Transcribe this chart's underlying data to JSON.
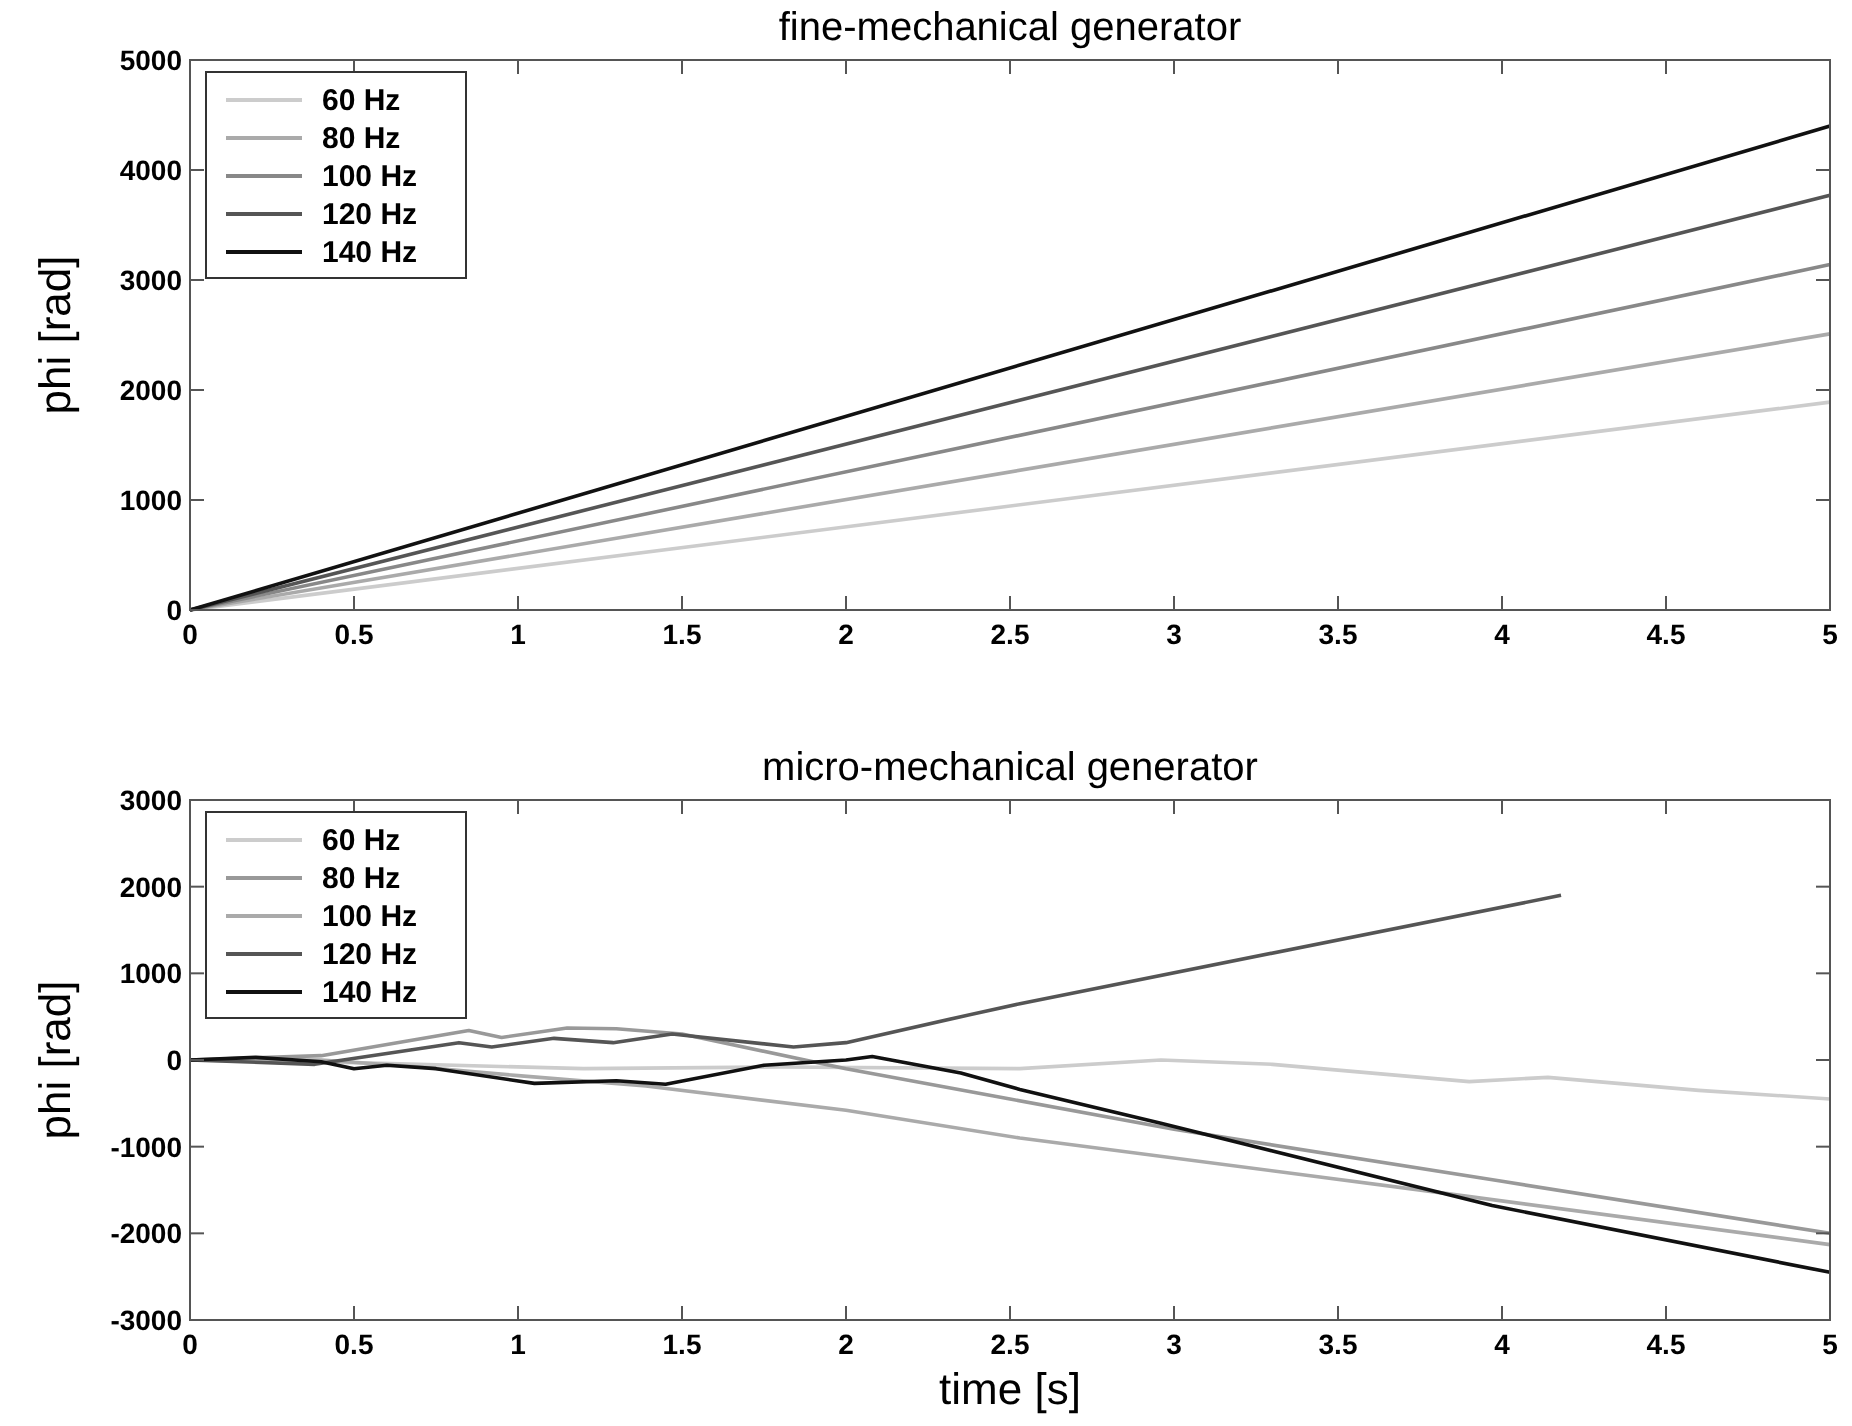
{
  "chart_data": [
    {
      "type": "line",
      "title": "fine-mechanical generator",
      "ylabel": "phi [rad]",
      "xlim": [
        0,
        5
      ],
      "ylim": [
        0,
        5000
      ],
      "xticks": [
        0,
        0.5,
        1,
        1.5,
        2,
        2.5,
        3,
        3.5,
        4,
        4.5,
        5
      ],
      "yticks": [
        0,
        1000,
        2000,
        3000,
        4000,
        5000
      ],
      "legend": "top left",
      "series": [
        {
          "name": "60 Hz",
          "color": "#cccccc",
          "x": [
            0,
            5
          ],
          "values": [
            0,
            1890
          ]
        },
        {
          "name": "80 Hz",
          "color": "#aaaaaa",
          "x": [
            0,
            5
          ],
          "values": [
            0,
            2510
          ]
        },
        {
          "name": "100 Hz",
          "color": "#888888",
          "x": [
            0,
            5
          ],
          "values": [
            0,
            3140
          ]
        },
        {
          "name": "120 Hz",
          "color": "#555555",
          "x": [
            0,
            5
          ],
          "values": [
            0,
            3770
          ]
        },
        {
          "name": "140 Hz",
          "color": "#111111",
          "x": [
            0,
            5
          ],
          "values": [
            0,
            4400
          ]
        }
      ]
    },
    {
      "type": "line",
      "title": "micro-mechanical generator",
      "xlabel": "time [s]",
      "ylabel": "phi [rad]",
      "xlim": [
        0,
        5
      ],
      "ylim": [
        -3000,
        3000
      ],
      "xticks": [
        0,
        0.5,
        1,
        1.5,
        2,
        2.5,
        3,
        3.5,
        4,
        4.5,
        5
      ],
      "yticks": [
        -3000,
        -2000,
        -1000,
        0,
        1000,
        2000,
        3000
      ],
      "legend": "top left",
      "series": [
        {
          "name": "60 Hz",
          "color": "#cccccc",
          "x": [
            0,
            0.5,
            1.2,
            1.8,
            2.53,
            2.96,
            3.3,
            3.9,
            4.14,
            4.6,
            5
          ],
          "values": [
            0,
            -30,
            -100,
            -80,
            -100,
            0,
            -50,
            -250,
            -200,
            -350,
            -450
          ]
        },
        {
          "name": "80 Hz",
          "color": "#999999",
          "x": [
            0,
            0.4,
            0.85,
            0.95,
            1.15,
            1.3,
            1.5,
            2,
            2.5,
            3,
            4,
            5
          ],
          "values": [
            0,
            50,
            340,
            260,
            370,
            360,
            300,
            -100,
            -450,
            -800,
            -1400,
            -2000
          ]
        },
        {
          "name": "100 Hz",
          "color": "#aaaaaa",
          "x": [
            0,
            0.4,
            0.7,
            1,
            1.39,
            2,
            2.53,
            3.81,
            5
          ],
          "values": [
            0,
            0,
            -80,
            -180,
            -300,
            -580,
            -900,
            -1530,
            -2130
          ]
        },
        {
          "name": "120 Hz",
          "color": "#555555",
          "x": [
            0,
            0.38,
            0.82,
            0.92,
            1.11,
            1.29,
            1.47,
            1.84,
            2,
            2.35,
            2.53,
            4.18
          ],
          "values": [
            0,
            -50,
            200,
            150,
            250,
            200,
            300,
            150,
            200,
            500,
            650,
            1900
          ]
        },
        {
          "name": "140 Hz",
          "color": "#111111",
          "x": [
            0,
            0.2,
            0.4,
            0.5,
            0.6,
            0.75,
            1.05,
            1.3,
            1.45,
            1.75,
            2,
            2.08,
            2.35,
            2.53,
            2.96,
            3.97,
            5
          ],
          "values": [
            0,
            30,
            -20,
            -100,
            -60,
            -100,
            -270,
            -240,
            -280,
            -60,
            0,
            40,
            -150,
            -340,
            -730,
            -1680,
            -2450
          ]
        }
      ]
    }
  ]
}
